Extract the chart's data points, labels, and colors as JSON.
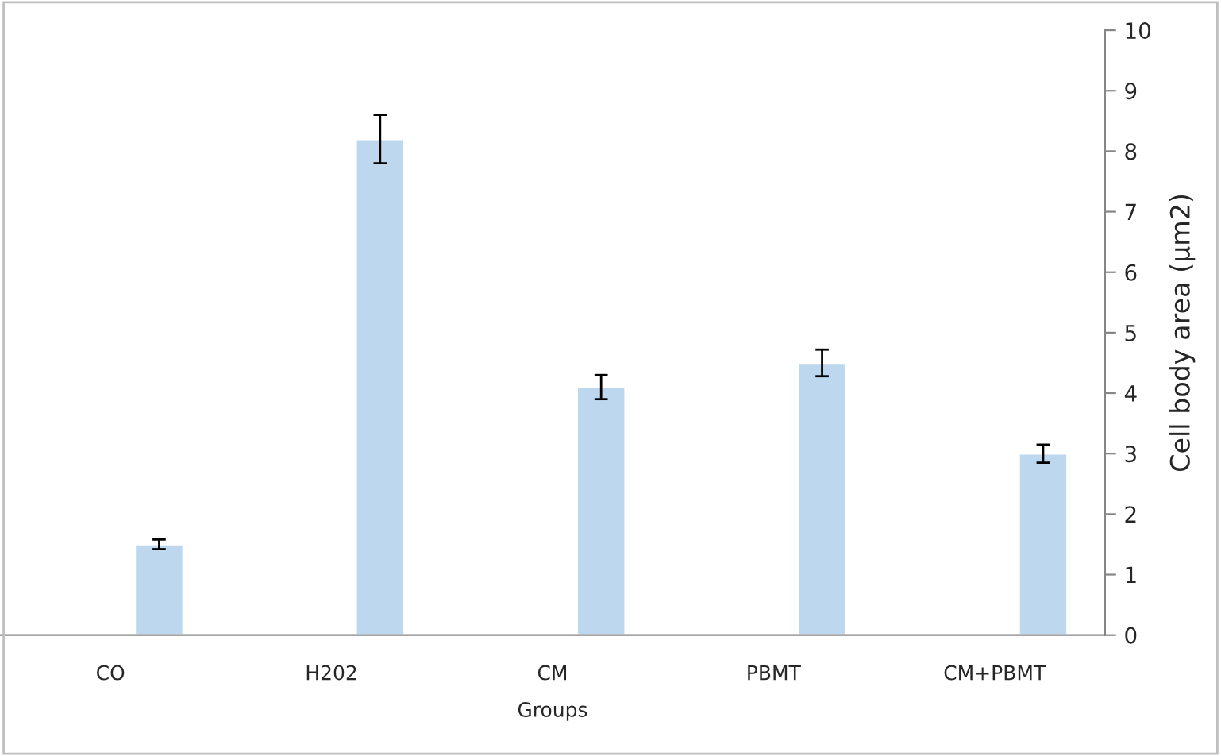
{
  "chart_data": {
    "type": "bar",
    "categories": [
      "CO",
      "H202",
      "CM",
      "PBMT",
      "CM+PBMT"
    ],
    "values": [
      1.5,
      8.2,
      4.1,
      4.5,
      3.0
    ],
    "errors": [
      0.08,
      0.4,
      0.2,
      0.22,
      0.15
    ],
    "color": "#bdd7ee",
    "xlabel": "Groups",
    "ylabel": "Cell body area (µm2)",
    "ylim": [
      0,
      10
    ],
    "yticks": [
      0,
      1,
      2,
      3,
      4,
      5,
      6,
      7,
      8,
      9,
      10
    ],
    "grid": false,
    "legend": false
  }
}
